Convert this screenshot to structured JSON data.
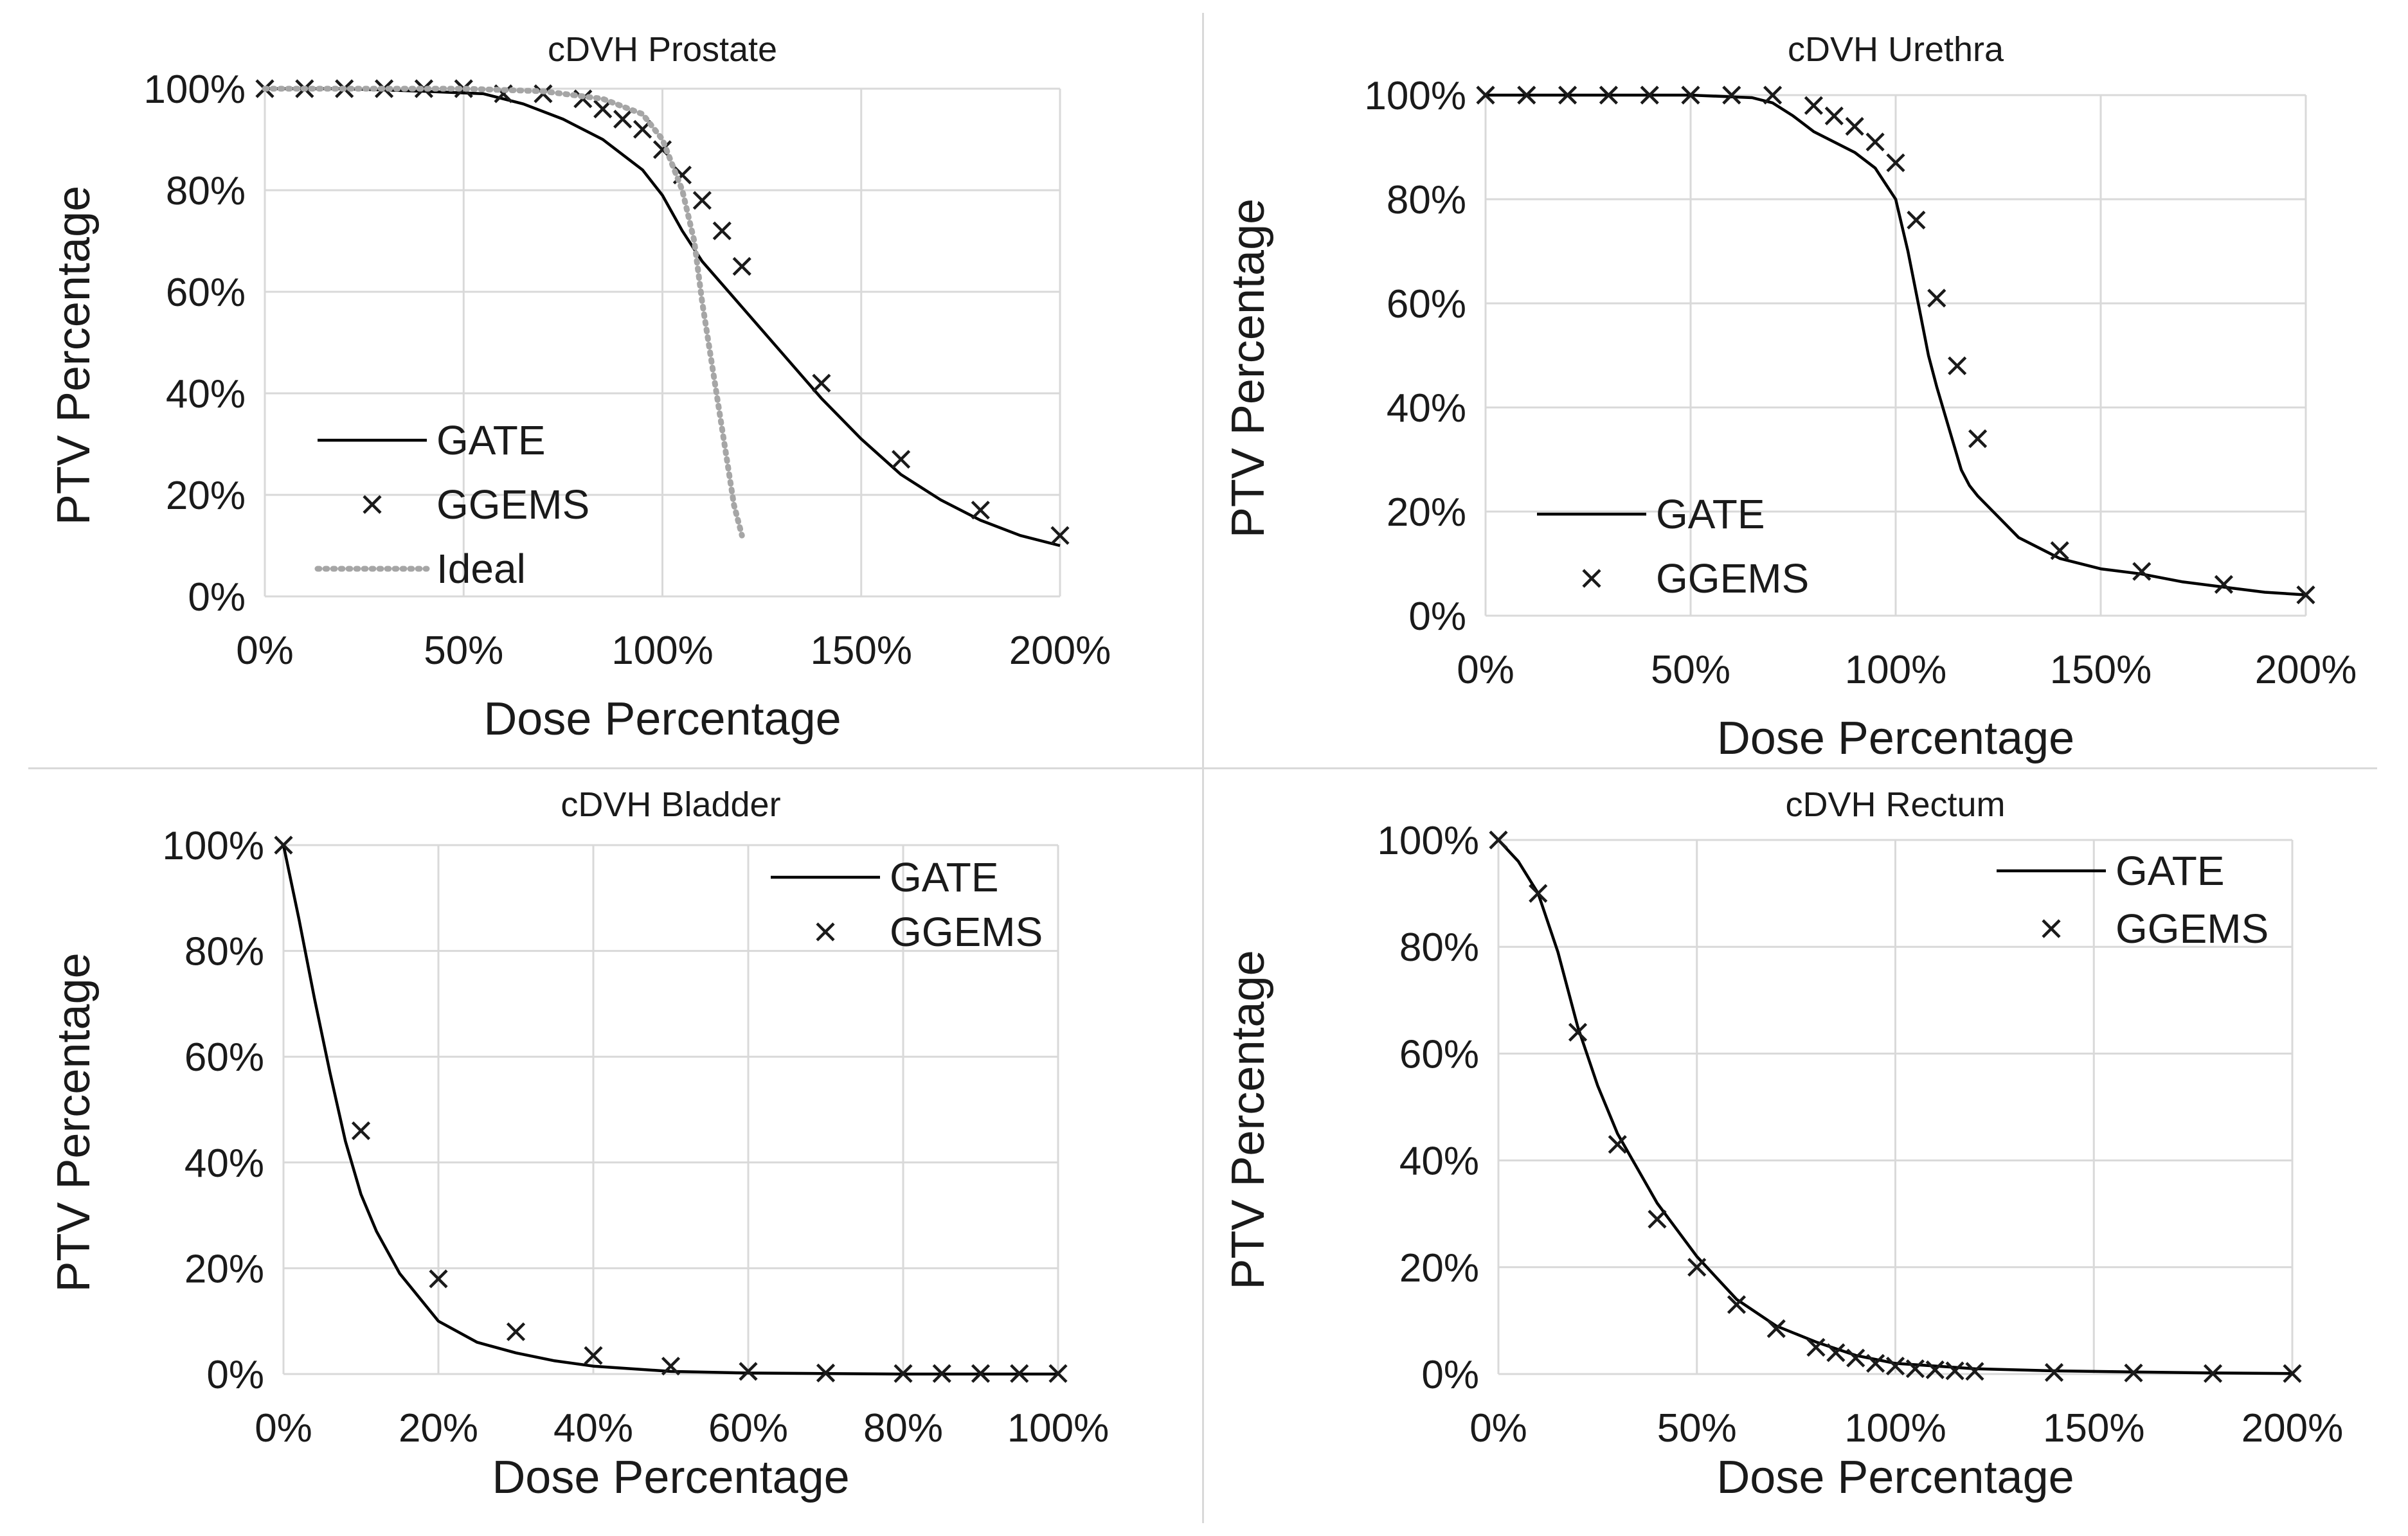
{
  "chart_data": [
    {
      "type": "line",
      "title": "cDVH Prostate",
      "xlabel": "Dose Percentage",
      "ylabel": "PTV Percentage",
      "xlim": [
        0,
        200
      ],
      "ylim": [
        0,
        100
      ],
      "x_ticks": [
        "0%",
        "50%",
        "100%",
        "150%",
        "200%"
      ],
      "y_ticks": [
        "0%",
        "20%",
        "40%",
        "60%",
        "80%",
        "100%"
      ],
      "grid": true,
      "legend_position": "bottom-left",
      "series": [
        {
          "name": "GATE",
          "style": "line",
          "x": [
            0,
            20,
            40,
            55,
            65,
            75,
            85,
            95,
            100,
            105,
            110,
            120,
            130,
            140,
            150,
            160,
            170,
            180,
            190,
            200
          ],
          "y": [
            100,
            100,
            99.5,
            99,
            97,
            94,
            90,
            84,
            79,
            72,
            66,
            57,
            48,
            39,
            31,
            24,
            19,
            15,
            12,
            10
          ]
        },
        {
          "name": "GGEMS",
          "style": "marker",
          "x": [
            0,
            10,
            20,
            30,
            40,
            50,
            60,
            70,
            80,
            85,
            90,
            95,
            100,
            105,
            110,
            115,
            120,
            140,
            160,
            180,
            200
          ],
          "y": [
            100,
            100,
            100,
            100,
            100,
            100,
            99,
            99,
            98,
            96,
            94,
            92,
            88,
            83,
            78,
            72,
            65,
            42,
            27,
            17,
            12
          ]
        },
        {
          "name": "Ideal",
          "style": "dotted",
          "x": [
            0,
            50,
            70,
            85,
            95,
            100,
            105,
            108,
            110,
            112,
            114,
            116,
            118,
            120
          ],
          "y": [
            100,
            100,
            99.5,
            98,
            95,
            90,
            80,
            70,
            58,
            48,
            38,
            28,
            18,
            12
          ]
        }
      ]
    },
    {
      "type": "line",
      "title": "cDVH Urethra",
      "xlabel": "Dose Percentage",
      "ylabel": "PTV Percentage",
      "xlim": [
        0,
        200
      ],
      "ylim": [
        0,
        100
      ],
      "x_ticks": [
        "0%",
        "50%",
        "100%",
        "150%",
        "200%"
      ],
      "y_ticks": [
        "0%",
        "20%",
        "40%",
        "60%",
        "80%",
        "100%"
      ],
      "grid": true,
      "legend_position": "bottom-left",
      "series": [
        {
          "name": "GATE",
          "style": "line",
          "x": [
            0,
            50,
            65,
            70,
            75,
            80,
            90,
            95,
            100,
            103,
            106,
            108,
            110,
            113,
            116,
            118,
            120,
            125,
            130,
            140,
            150,
            160,
            170,
            180,
            190,
            200
          ],
          "y": [
            100,
            100,
            99.5,
            98.5,
            96,
            93,
            89,
            86,
            80,
            70,
            58,
            50,
            44,
            36,
            28,
            25,
            23,
            19,
            15,
            11,
            9,
            8,
            6.5,
            5.5,
            4.5,
            4
          ]
        },
        {
          "name": "GGEMS",
          "style": "marker",
          "x": [
            0,
            10,
            20,
            30,
            40,
            50,
            60,
            70,
            80,
            85,
            90,
            95,
            100,
            105,
            110,
            115,
            120,
            140,
            160,
            180,
            200
          ],
          "y": [
            100,
            100,
            100,
            100,
            100,
            100,
            100,
            100,
            98,
            96,
            94,
            91,
            87,
            76,
            61,
            48,
            34,
            12.5,
            8.5,
            6,
            4
          ]
        }
      ]
    },
    {
      "type": "line",
      "title": "cDVH Bladder",
      "xlabel": "Dose Percentage",
      "ylabel": "PTV Percentage",
      "xlim": [
        0,
        100
      ],
      "ylim": [
        0,
        100
      ],
      "x_ticks": [
        "0%",
        "20%",
        "40%",
        "60%",
        "80%",
        "100%"
      ],
      "y_ticks": [
        "0%",
        "20%",
        "40%",
        "60%",
        "80%",
        "100%"
      ],
      "grid": true,
      "legend_position": "top-right",
      "series": [
        {
          "name": "GATE",
          "style": "line",
          "x": [
            0,
            2,
            4,
            6,
            8,
            10,
            12,
            15,
            20,
            25,
            30,
            35,
            40,
            50,
            60,
            70,
            80,
            90,
            100
          ],
          "y": [
            100,
            86,
            71,
            57,
            44,
            34,
            27,
            19,
            10,
            6,
            4,
            2.5,
            1.5,
            0.5,
            0.2,
            0.1,
            0,
            0,
            0
          ]
        },
        {
          "name": "GGEMS",
          "style": "marker",
          "x": [
            0,
            10,
            20,
            30,
            40,
            50,
            60,
            70,
            80,
            85,
            90,
            95,
            100
          ],
          "y": [
            100,
            46,
            18,
            8,
            3.5,
            1.5,
            0.5,
            0.2,
            0.1,
            0.1,
            0.1,
            0.1,
            0.1
          ]
        }
      ]
    },
    {
      "type": "line",
      "title": "cDVH Rectum",
      "xlabel": "Dose Percentage",
      "ylabel": "PTV Percentage",
      "xlim": [
        0,
        200
      ],
      "ylim": [
        0,
        100
      ],
      "x_ticks": [
        "0%",
        "50%",
        "100%",
        "150%",
        "200%"
      ],
      "y_ticks": [
        "0%",
        "20%",
        "40%",
        "60%",
        "80%",
        "100%"
      ],
      "grid": true,
      "legend_position": "top-right",
      "series": [
        {
          "name": "GATE",
          "style": "line",
          "x": [
            0,
            5,
            10,
            15,
            20,
            25,
            30,
            40,
            50,
            60,
            70,
            80,
            90,
            100,
            120,
            140,
            160,
            180,
            200
          ],
          "y": [
            100,
            96,
            90,
            79,
            65,
            54,
            45,
            32,
            22,
            14,
            9,
            6,
            3.5,
            2,
            1,
            0.6,
            0.4,
            0.2,
            0.1
          ]
        },
        {
          "name": "GGEMS",
          "style": "marker",
          "x": [
            0,
            10,
            20,
            30,
            40,
            50,
            60,
            70,
            80,
            85,
            90,
            95,
            100,
            105,
            110,
            115,
            120,
            140,
            160,
            180,
            200
          ],
          "y": [
            100,
            90,
            64,
            43,
            29,
            20,
            13,
            8.5,
            5,
            4,
            3,
            2,
            1.5,
            1,
            0.8,
            0.6,
            0.5,
            0.3,
            0.2,
            0.1,
            0.1
          ]
        }
      ]
    }
  ],
  "colors": {
    "line": "#000000",
    "marker": "#1a1a1a",
    "ideal": "#a6a6a6",
    "grid": "#d9d9d9",
    "frame": "#d9d9d9"
  }
}
